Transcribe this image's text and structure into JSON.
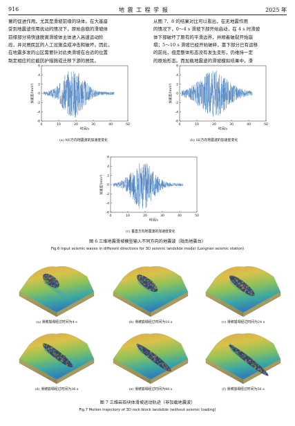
{
  "header": {
    "page_number": "916",
    "journal": "地 震 工 程 学 报",
    "year": "2025 年"
  },
  "left_lines": [
    "著的促进作用，尤其是滑坡前缘的块体。在大基座",
    "受到地震波作用扰动的情况下，原始自稳的滑坡体",
    "前缘部分将快速脱离滑坡体主体进入高速运动阶",
    "段，并对居民区的人工设施造成冲击和破坏。因此，",
    "在地震多发的山区需要针对此类滑坡在合适的位置",
    "制定相应的拦截防护措施或迁移下游的居民。"
  ],
  "right_lines": [
    "从图 7、8 的结果对比可以看出，在无地震作用",
    "的情况下，0～4 s 滑坡下部开始启动，在 4 s 时滑坡",
    "体下部破坏了原有的平滑边界，并顺着破裂开始崩",
    "塌；5～10 s 滑坡已经开始破碎，靠下部分已有运移",
    "的前兆，但是整体形态没有发生变形，仍维持一定",
    "的原始形态。而加载地震波的滑坡模拟结果中，滑"
  ],
  "waves": [
    {
      "id": "ne",
      "caption": "(a) NE方向地震波的加速度变化",
      "ylabel": "加速度/(m/s²)",
      "xlabel": "时间/s",
      "xticks": [
        "0",
        "10",
        "20",
        "30",
        "40",
        "50"
      ],
      "yticks": [
        "6",
        "4",
        "2",
        "0",
        "-2",
        "-4",
        "-6"
      ],
      "seed": 3
    },
    {
      "id": "se",
      "caption": "(b) SE方向地震波的加速度变化",
      "ylabel": "加速度/(m/s²)",
      "xlabel": "时间/s",
      "xticks": [
        "0",
        "10",
        "20",
        "30",
        "40",
        "50"
      ],
      "yticks": [
        "6",
        "4",
        "2",
        "0",
        "-2",
        "-4",
        "-6"
      ],
      "seed": 11
    },
    {
      "id": "vz",
      "caption": "(c) 垂直方向地震波的加速度变化",
      "ylabel": "加速度/(m/s²)",
      "xlabel": "时间/s",
      "xticks": [
        "0",
        "10",
        "20",
        "30",
        "40",
        "50"
      ],
      "yticks": [
        "6",
        "4",
        "2",
        "0",
        "-2",
        "-4",
        "-6"
      ],
      "seed": 23
    }
  ],
  "fig6": {
    "cn": "图 6    三维地震滑坡模型输入不同方向的地震波（陇南地震台）",
    "en": "Fig.6    Input seismic waves in different directions for 3D seismic landslide model (Longnan seismic station)"
  },
  "panels": [
    {
      "id": "a",
      "caption": "(a) 滑坡崩塌经过时间为4 s",
      "seed": 5
    },
    {
      "id": "b",
      "caption": "(b) 滑坡崩塌经过时间为10 s",
      "seed": 8
    },
    {
      "id": "c",
      "caption": "(c) 滑坡崩塌经过时间为24 s",
      "seed": 13
    },
    {
      "id": "d",
      "caption": "(d) 滑坡崩塌经过时间为36 s",
      "seed": 17
    },
    {
      "id": "e",
      "caption": "(e) 滑坡崩塌经过时间为48 s",
      "seed": 29
    },
    {
      "id": "f",
      "caption": "(f) 滑坡崩塌经过时间为56 s",
      "seed": 31
    }
  ],
  "fig7": {
    "cn": "图 7    三维岩石块体滑坡运动轨迹（非加载地震波）",
    "en": "Fig.7    Motion trajectory of 3D rock block landslide (without seismic loading)"
  }
}
